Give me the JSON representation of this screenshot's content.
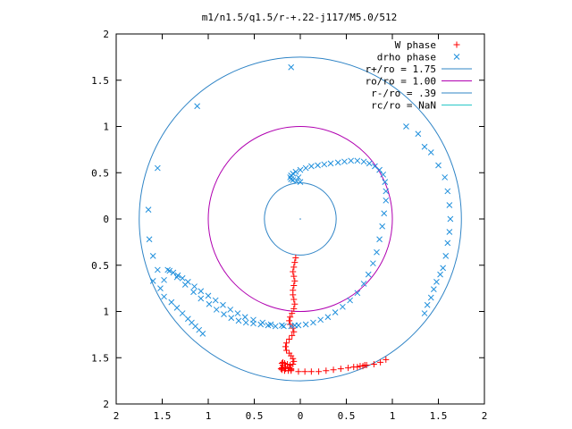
{
  "chart_data": {
    "type": "scatter",
    "title": "m1/n1.5/q1.5/r-+.22-j117/M5.0/512",
    "xlabel": "",
    "ylabel": "",
    "xlim": [
      -2,
      2
    ],
    "ylim": [
      -2,
      2
    ],
    "x_ticks": [
      {
        "value": -2,
        "label": "2"
      },
      {
        "value": -1.5,
        "label": "1.5"
      },
      {
        "value": -1,
        "label": "1"
      },
      {
        "value": -0.5,
        "label": "0.5"
      },
      {
        "value": 0,
        "label": "0"
      },
      {
        "value": 0.5,
        "label": "0.5"
      },
      {
        "value": 1,
        "label": "1"
      },
      {
        "value": 1.5,
        "label": "1.5"
      },
      {
        "value": 2,
        "label": "2"
      }
    ],
    "y_ticks": [
      {
        "value": 2,
        "label": "2"
      },
      {
        "value": 1.5,
        "label": "1.5"
      },
      {
        "value": 1,
        "label": "1"
      },
      {
        "value": 0.5,
        "label": "0.5"
      },
      {
        "value": 0,
        "label": "0"
      },
      {
        "value": -0.5,
        "label": "0.5"
      },
      {
        "value": -1,
        "label": "1"
      },
      {
        "value": -1.5,
        "label": "1.5"
      },
      {
        "value": -2,
        "label": "2"
      }
    ],
    "grid": false,
    "legend_position": "top-right",
    "legend": [
      {
        "label": "W phase",
        "type": "plus",
        "color": "#ff0000"
      },
      {
        "label": "drho phase",
        "type": "cross",
        "color": "#1f8fdc"
      },
      {
        "label": "r+/ro = 1.75",
        "type": "line",
        "color": "#2f84c6"
      },
      {
        "label": "ro/ro = 1.00",
        "type": "line",
        "color": "#b000b0"
      },
      {
        "label": "r-/ro = .39",
        "type": "line",
        "color": "#2f84c6"
      },
      {
        "label": "rc/ro = NaN",
        "type": "line",
        "color": "#28c8c8"
      }
    ],
    "circles": [
      {
        "name": "r+/ro = 1.75",
        "radius": 1.75,
        "color": "#2f84c6"
      },
      {
        "name": "ro/ro = 1.00",
        "radius": 1.0,
        "color": "#b000b0"
      },
      {
        "name": "r-/ro = .39",
        "radius": 0.39,
        "color": "#2f84c6"
      }
    ],
    "series": [
      {
        "name": "W phase",
        "marker": "plus",
        "color": "#ff0000",
        "x": [
          -0.05,
          -0.06,
          -0.07,
          -0.08,
          -0.07,
          -0.06,
          -0.07,
          -0.08,
          -0.08,
          -0.07,
          -0.06,
          -0.07,
          -0.09,
          -0.11,
          -0.12,
          -0.11,
          -0.08,
          -0.07,
          -0.09,
          -0.12,
          -0.15,
          -0.16,
          -0.15,
          -0.12,
          -0.1,
          -0.08,
          -0.07,
          -0.08,
          -0.11,
          -0.14,
          -0.17,
          -0.19,
          -0.2,
          -0.19,
          -0.16,
          -0.12,
          -0.1,
          -0.1,
          -0.13,
          -0.17,
          -0.2,
          -0.21,
          -0.2,
          -0.16,
          -0.1,
          -0.02,
          0.05,
          0.12,
          0.2,
          0.28,
          0.36,
          0.44,
          0.52,
          0.58,
          0.62,
          0.65,
          0.68,
          0.7,
          0.72,
          0.8,
          0.87,
          0.93
        ],
        "y": [
          -0.42,
          -0.47,
          -0.52,
          -0.57,
          -0.62,
          -0.67,
          -0.72,
          -0.77,
          -0.82,
          -0.87,
          -0.92,
          -0.97,
          -1.02,
          -1.06,
          -1.1,
          -1.14,
          -1.18,
          -1.22,
          -1.26,
          -1.3,
          -1.34,
          -1.38,
          -1.42,
          -1.45,
          -1.48,
          -1.51,
          -1.54,
          -1.57,
          -1.58,
          -1.57,
          -1.56,
          -1.55,
          -1.56,
          -1.58,
          -1.6,
          -1.61,
          -1.62,
          -1.63,
          -1.64,
          -1.64,
          -1.63,
          -1.62,
          -1.61,
          -1.62,
          -1.64,
          -1.65,
          -1.65,
          -1.65,
          -1.65,
          -1.64,
          -1.63,
          -1.62,
          -1.61,
          -1.6,
          -1.6,
          -1.59,
          -1.59,
          -1.58,
          -1.58,
          -1.57,
          -1.55,
          -1.52
        ]
      },
      {
        "name": "drho phase",
        "marker": "cross",
        "color": "#1f8fdc",
        "x": [
          -0.06,
          -0.2,
          -0.32,
          -0.41,
          -0.51,
          -0.6,
          -0.68,
          -0.76,
          -0.84,
          -0.92,
          -1.0,
          -1.08,
          -1.15,
          -1.22,
          -1.28,
          -1.33,
          -1.38,
          -1.42,
          -1.44,
          -1.34,
          -1.25,
          -1.16,
          -1.08,
          -0.99,
          -0.91,
          -0.83,
          -0.75,
          -0.67,
          -0.59,
          -0.51,
          -0.43,
          -0.35,
          -0.27,
          -0.18,
          -0.1,
          -0.02,
          0.06,
          0.14,
          0.22,
          0.3,
          0.38,
          0.46,
          0.54,
          0.62,
          0.69,
          0.74,
          0.79,
          0.83,
          0.86,
          0.89,
          0.91,
          0.93,
          0.93,
          0.92,
          0.9,
          0.86,
          0.81,
          0.75,
          0.69,
          0.62,
          0.55,
          0.48,
          0.41,
          0.33,
          0.26,
          0.19,
          0.12,
          0.06,
          0.0,
          -0.05,
          -0.08,
          -0.1,
          -0.11,
          -0.1,
          -0.08,
          -0.04,
          0.0,
          -0.02,
          -1.6,
          -1.52,
          -1.48,
          -1.4,
          -1.34,
          -1.28,
          -1.22,
          -1.18,
          -1.14,
          -1.1,
          -1.06,
          -0.1,
          -1.12,
          -1.55,
          -1.65,
          -1.64,
          -1.6,
          -1.55,
          -1.48,
          1.15,
          1.28,
          1.35,
          1.42,
          1.5,
          1.57,
          1.6,
          1.62,
          1.63,
          1.62,
          1.6,
          1.58,
          1.55,
          1.52,
          1.48,
          1.45,
          1.42,
          1.38,
          1.35
        ],
        "y": [
          -1.15,
          -1.15,
          -1.14,
          -1.12,
          -1.09,
          -1.06,
          -1.02,
          -0.98,
          -0.93,
          -0.88,
          -0.83,
          -0.78,
          -0.73,
          -0.68,
          -0.64,
          -0.61,
          -0.58,
          -0.56,
          -0.55,
          -0.63,
          -0.71,
          -0.79,
          -0.86,
          -0.92,
          -0.98,
          -1.03,
          -1.07,
          -1.1,
          -1.12,
          -1.13,
          -1.14,
          -1.15,
          -1.16,
          -1.16,
          -1.16,
          -1.15,
          -1.14,
          -1.12,
          -1.09,
          -1.06,
          -1.01,
          -0.95,
          -0.88,
          -0.8,
          -0.7,
          -0.6,
          -0.48,
          -0.36,
          -0.22,
          -0.08,
          0.06,
          0.2,
          0.3,
          0.4,
          0.48,
          0.53,
          0.57,
          0.6,
          0.62,
          0.63,
          0.63,
          0.62,
          0.61,
          0.6,
          0.59,
          0.58,
          0.57,
          0.55,
          0.53,
          0.51,
          0.49,
          0.47,
          0.45,
          0.43,
          0.42,
          0.41,
          0.4,
          0.45,
          -0.67,
          -0.75,
          -0.84,
          -0.9,
          -0.96,
          -1.02,
          -1.08,
          -1.12,
          -1.16,
          -1.2,
          -1.24,
          1.64,
          1.22,
          0.55,
          0.1,
          -0.22,
          -0.4,
          -0.55,
          -0.66,
          1.0,
          0.92,
          0.78,
          0.72,
          0.58,
          0.45,
          0.3,
          0.15,
          0.0,
          -0.14,
          -0.26,
          -0.4,
          -0.53,
          -0.6,
          -0.68,
          -0.76,
          -0.85,
          -0.93,
          -1.02
        ]
      }
    ]
  }
}
